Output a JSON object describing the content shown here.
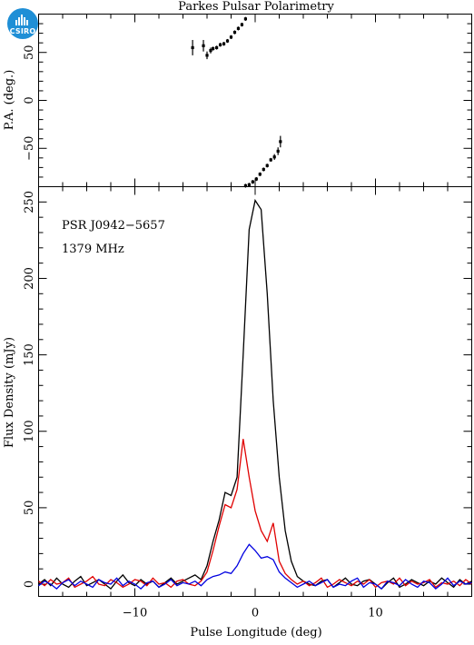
{
  "title": "Parkes Pulsar Polarimetry",
  "logo_text": "CSIRO",
  "colors": {
    "total_intensity": "#000000",
    "linear": "#e00000",
    "circular": "#0000e0",
    "logo": "#1f8fd6"
  },
  "chart_data": [
    {
      "type": "scatter",
      "panel": "top",
      "ylabel": "P.A. (deg.)",
      "xlim": [
        -18,
        18
      ],
      "ylim": [
        -90,
        90
      ],
      "x_ticks": [
        -10,
        0,
        10
      ],
      "y_ticks": [
        50,
        0,
        -50
      ],
      "grid": false,
      "series": [
        {
          "points": [
            {
              "x": -5.2,
              "y": 55,
              "err": 8
            },
            {
              "x": -4.3,
              "y": 57,
              "err": 6
            },
            {
              "x": -4.0,
              "y": 47,
              "err": 4
            },
            {
              "x": -3.7,
              "y": 52,
              "err": 3
            },
            {
              "x": -3.5,
              "y": 54,
              "err": 2
            },
            {
              "x": -3.2,
              "y": 55,
              "err": 2
            },
            {
              "x": -2.9,
              "y": 58,
              "err": 2
            },
            {
              "x": -2.6,
              "y": 59,
              "err": 2
            },
            {
              "x": -2.3,
              "y": 62,
              "err": 2
            },
            {
              "x": -2.0,
              "y": 66,
              "err": 2
            },
            {
              "x": -1.7,
              "y": 71,
              "err": 2
            },
            {
              "x": -1.4,
              "y": 75,
              "err": 2
            },
            {
              "x": -1.1,
              "y": 79,
              "err": 2
            },
            {
              "x": -0.8,
              "y": 85,
              "err": 2
            },
            {
              "x": -0.8,
              "y": -89,
              "err": 2
            },
            {
              "x": -0.5,
              "y": -88,
              "err": 2
            },
            {
              "x": -0.2,
              "y": -85,
              "err": 2
            },
            {
              "x": 0.1,
              "y": -82,
              "err": 2
            },
            {
              "x": 0.4,
              "y": -77,
              "err": 2
            },
            {
              "x": 0.7,
              "y": -72,
              "err": 2
            },
            {
              "x": 1.0,
              "y": -68,
              "err": 2
            },
            {
              "x": 1.3,
              "y": -62,
              "err": 2
            },
            {
              "x": 1.6,
              "y": -59,
              "err": 3
            },
            {
              "x": 1.9,
              "y": -53,
              "err": 4
            },
            {
              "x": 2.1,
              "y": -43,
              "err": 6
            }
          ]
        }
      ]
    },
    {
      "type": "line",
      "panel": "bottom",
      "xlabel": "Pulse Longitude (deg)",
      "ylabel": "Flux Density (mJy)",
      "annotations": [
        "PSR J0942−5657",
        "1379 MHz"
      ],
      "xlim": [
        -18,
        18
      ],
      "ylim": [
        -8,
        260
      ],
      "x_ticks": [
        -10,
        0,
        10
      ],
      "y_ticks": [
        0,
        50,
        100,
        150,
        200,
        250
      ],
      "grid": false,
      "x": [
        -18.0,
        -17.5,
        -17.0,
        -16.5,
        -16.0,
        -15.5,
        -15.0,
        -14.5,
        -14.0,
        -13.5,
        -13.0,
        -12.5,
        -12.0,
        -11.5,
        -11.0,
        -10.5,
        -10.0,
        -9.5,
        -9.0,
        -8.5,
        -8.0,
        -7.5,
        -7.0,
        -6.5,
        -6.0,
        -5.5,
        -5.0,
        -4.5,
        -4.0,
        -3.5,
        -3.0,
        -2.5,
        -2.0,
        -1.5,
        -1.0,
        -0.5,
        0.0,
        0.5,
        1.0,
        1.5,
        2.0,
        2.5,
        3.0,
        3.5,
        4.0,
        4.5,
        5.0,
        5.5,
        6.0,
        6.5,
        7.0,
        7.5,
        8.0,
        8.5,
        9.0,
        9.5,
        10.0,
        10.5,
        11.0,
        11.5,
        12.0,
        12.5,
        13.0,
        13.5,
        14.0,
        14.5,
        15.0,
        15.5,
        16.0,
        16.5,
        17.0,
        17.5,
        18.0
      ],
      "series": [
        {
          "key": "total_intensity",
          "values": [
            0,
            3,
            -1,
            4,
            0,
            -2,
            2,
            5,
            -1,
            1,
            3,
            0,
            -3,
            2,
            6,
            1,
            -1,
            3,
            0,
            2,
            -2,
            1,
            4,
            0,
            2,
            4,
            6,
            3,
            12,
            28,
            42,
            60,
            58,
            70,
            150,
            232,
            251,
            245,
            190,
            120,
            70,
            35,
            15,
            5,
            2,
            0,
            -1,
            2,
            3,
            -2,
            1,
            4,
            0,
            -1,
            2,
            3,
            0,
            -3,
            1,
            4,
            -2,
            0,
            3,
            1,
            -1,
            2,
            0,
            4,
            1,
            -2,
            3,
            0,
            2
          ]
        },
        {
          "key": "linear",
          "values": [
            2,
            -1,
            3,
            0,
            1,
            4,
            -2,
            0,
            2,
            5,
            0,
            -1,
            3,
            1,
            -2,
            0,
            3,
            2,
            -1,
            4,
            0,
            1,
            -2,
            2,
            3,
            0,
            -1,
            2,
            8,
            22,
            38,
            52,
            50,
            62,
            95,
            70,
            48,
            35,
            28,
            40,
            15,
            7,
            3,
            0,
            2,
            -1,
            1,
            4,
            -2,
            0,
            3,
            1,
            -1,
            2,
            0,
            3,
            -2,
            1,
            2,
            0,
            4,
            -1,
            2,
            0,
            1,
            3,
            -2,
            1,
            0,
            2,
            -1,
            3,
            0
          ]
        },
        {
          "key": "circular",
          "values": [
            -1,
            2,
            0,
            -3,
            1,
            3,
            -1,
            2,
            0,
            -2,
            3,
            1,
            0,
            4,
            -1,
            2,
            0,
            -3,
            1,
            2,
            -2,
            0,
            3,
            -1,
            1,
            0,
            2,
            -1,
            3,
            5,
            6,
            8,
            7,
            12,
            20,
            26,
            22,
            17,
            18,
            16,
            8,
            4,
            1,
            -2,
            0,
            2,
            -1,
            1,
            3,
            -2,
            0,
            -1,
            2,
            4,
            -2,
            1,
            0,
            -3,
            2,
            1,
            -1,
            3,
            0,
            -2,
            2,
            1,
            -3,
            0,
            4,
            -1,
            2,
            0,
            1
          ]
        }
      ]
    }
  ]
}
